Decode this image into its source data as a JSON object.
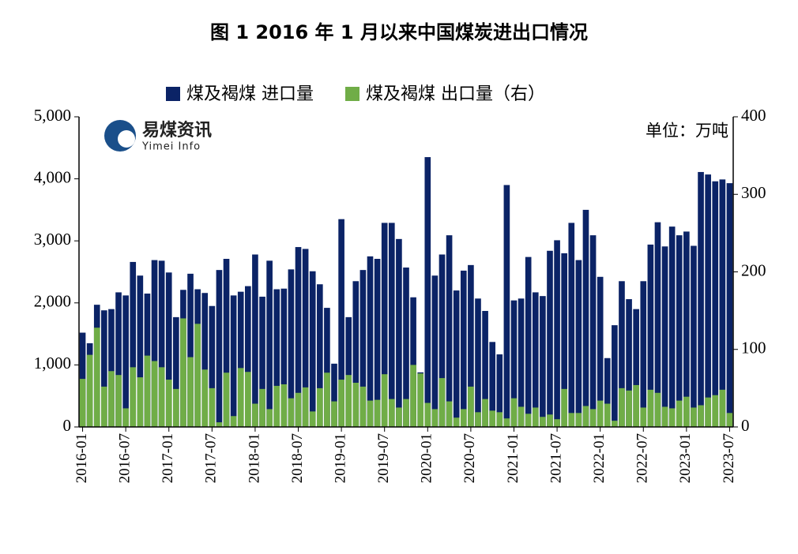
{
  "chart_data": {
    "type": "bar",
    "title": "图 1 2016 年 1 月以来中国煤炭进出口情况",
    "unit_note": "单位：万吨",
    "watermark": {
      "name": "易煤资讯",
      "sub": "Yimei Info"
    },
    "categories": [
      "2016-01",
      null,
      null,
      null,
      null,
      null,
      "2016-07",
      null,
      null,
      null,
      null,
      null,
      "2017-01",
      null,
      null,
      null,
      null,
      null,
      "2017-07",
      null,
      null,
      null,
      null,
      null,
      "2018-01",
      null,
      null,
      null,
      null,
      null,
      "2018-07",
      null,
      null,
      null,
      null,
      null,
      "2019-01",
      null,
      null,
      null,
      null,
      null,
      "2019-07",
      null,
      null,
      null,
      null,
      null,
      "2020-01",
      null,
      null,
      null,
      null,
      null,
      "2020-07",
      null,
      null,
      null,
      null,
      null,
      "2021-01",
      null,
      null,
      null,
      null,
      null,
      "2021-07",
      null,
      null,
      null,
      null,
      null,
      "2022-01",
      null,
      null,
      null,
      null,
      null,
      "2022-07",
      null,
      null,
      null,
      null,
      null,
      "2023-01",
      null,
      null,
      null,
      null,
      null,
      "2023-07"
    ],
    "series": [
      {
        "name": "煤及褐煤 进口量",
        "color": "#0b2366",
        "values": [
          1520,
          1350,
          1970,
          1880,
          1900,
          2170,
          2120,
          2660,
          2440,
          2150,
          2690,
          2680,
          2490,
          1770,
          2210,
          2470,
          2220,
          2160,
          1950,
          2530,
          2710,
          2120,
          2180,
          2270,
          2780,
          2100,
          2680,
          2220,
          2230,
          2540,
          2900,
          2870,
          2510,
          2300,
          1920,
          1020,
          3350,
          1770,
          2350,
          2530,
          2750,
          2710,
          3290,
          3290,
          3030,
          2570,
          2090,
          880,
          4350,
          2440,
          2780,
          3090,
          2200,
          2520,
          2610,
          2070,
          1870,
          1370,
          1170,
          3900,
          2040,
          2070,
          2740,
          2170,
          2110,
          2840,
          3010,
          2800,
          3290,
          2690,
          3500,
          3090,
          2420,
          1110,
          1640,
          2350,
          2060,
          1900,
          2350,
          2940,
          3300,
          2910,
          3230,
          3090,
          3150,
          2920,
          4110,
          4070,
          3960,
          3990,
          3930
        ]
      },
      {
        "name": "煤及褐煤 出口量（右）",
        "color": "#70ad47",
        "axis": "y2",
        "values": [
          62,
          93,
          128,
          52,
          72,
          67,
          24,
          77,
          64,
          92,
          85,
          77,
          61,
          49,
          140,
          90,
          133,
          74,
          50,
          6,
          70,
          14,
          76,
          71,
          30,
          49,
          23,
          53,
          55,
          37,
          44,
          51,
          20,
          50,
          70,
          33,
          61,
          67,
          57,
          52,
          34,
          35,
          68,
          36,
          25,
          36,
          80,
          69,
          31,
          23,
          63,
          33,
          12,
          23,
          52,
          19,
          36,
          21,
          19,
          11,
          37,
          26,
          17,
          25,
          13,
          16,
          10,
          49,
          18,
          18,
          27,
          23,
          34,
          30,
          8,
          50,
          47,
          54,
          25,
          48,
          44,
          26,
          24,
          34,
          39,
          25,
          28,
          38,
          41,
          48,
          18
        ]
      }
    ],
    "ylim": [
      0,
      5000
    ],
    "yticks": [
      0,
      {
        "value": 1000,
        "label": "1,000"
      },
      {
        "value": 2000,
        "label": "2,000"
      },
      {
        "value": 3000,
        "label": "3,000"
      },
      {
        "value": 4000,
        "label": "4,000"
      },
      {
        "value": 5000,
        "label": "5,000"
      }
    ],
    "y2lim": [
      0,
      400
    ],
    "y2ticks": [
      0,
      100,
      200,
      300,
      400
    ]
  }
}
